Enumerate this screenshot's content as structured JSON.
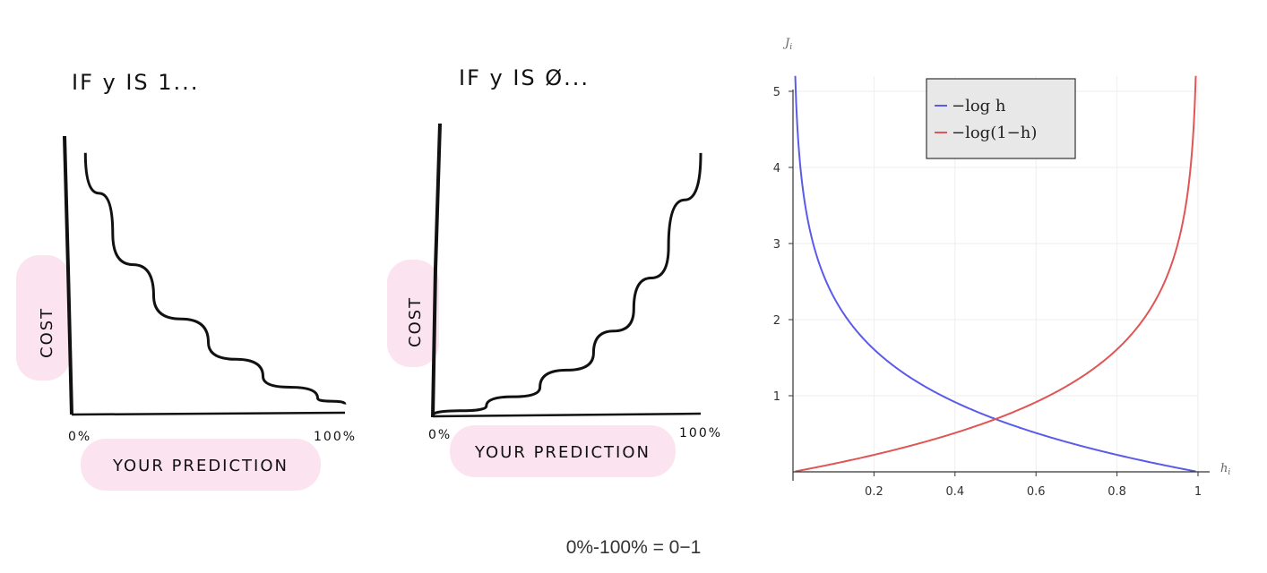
{
  "caption": "0%-100% = 0−1",
  "chart_data": [
    {
      "type": "line",
      "title": "IF y IS 1...",
      "xlabel": "YOUR PREDICTION",
      "ylabel": "COST",
      "x_tick_labels": [
        "0%",
        "100%"
      ],
      "shape": "decreasing",
      "points": {
        "x": [
          0.05,
          0.15,
          0.3,
          0.5,
          0.7,
          0.9,
          1.0
        ],
        "y": [
          4.2,
          2.9,
          1.9,
          1.15,
          0.6,
          0.25,
          0.15
        ]
      }
    },
    {
      "type": "line",
      "title": "IF y IS Ø...",
      "xlabel": "YOUR PREDICTION",
      "ylabel": "COST",
      "x_tick_labels": [
        "0%",
        "100%"
      ],
      "shape": "increasing",
      "points": {
        "x": [
          0.0,
          0.2,
          0.4,
          0.6,
          0.75,
          0.88,
          1.0
        ],
        "y": [
          0.0,
          0.15,
          0.45,
          1.0,
          1.7,
          2.7,
          4.2
        ]
      }
    },
    {
      "type": "line",
      "xlabel": "h_i",
      "ylabel": "J_i",
      "xlim": [
        0,
        1
      ],
      "ylim": [
        0,
        5.2
      ],
      "x_ticks": [
        0.2,
        0.4,
        0.6,
        0.8,
        1
      ],
      "y_ticks": [
        1,
        2,
        3,
        4,
        5
      ],
      "legend": "top-center",
      "series": [
        {
          "name": "−log h",
          "color": "#5b5bea",
          "function": "-log(h)"
        },
        {
          "name": "−log(1−h)",
          "color": "#e05555",
          "function": "-log(1-h)"
        }
      ]
    }
  ]
}
